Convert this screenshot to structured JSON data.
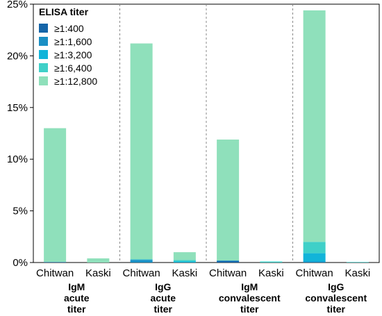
{
  "chart_data": {
    "type": "bar",
    "stacked": true,
    "categories": [
      "Chitwan",
      "Kaski",
      "Chitwan",
      "Kaski",
      "Chitwan",
      "Kaski",
      "Chitwan",
      "Kaski"
    ],
    "groups": [
      {
        "label_lines": [
          "IgM",
          "acute",
          "titer"
        ]
      },
      {
        "label_lines": [
          "IgG",
          "acute",
          "titer"
        ]
      },
      {
        "label_lines": [
          "IgM",
          "convalescent",
          "titer"
        ]
      },
      {
        "label_lines": [
          "IgG",
          "convalescent",
          "titer"
        ]
      }
    ],
    "series": [
      {
        "name": "≥1:400",
        "color": "#1565a8",
        "values": [
          0.05,
          0,
          0,
          0,
          0.15,
          0,
          0,
          0
        ]
      },
      {
        "name": "≥1:1,600",
        "color": "#1a8fc4",
        "values": [
          0,
          0,
          0.25,
          0,
          0.05,
          0,
          0.1,
          0
        ]
      },
      {
        "name": "≥1:3,200",
        "color": "#12b4d9",
        "values": [
          0,
          0,
          0.05,
          0.1,
          0,
          0,
          0.8,
          0
        ]
      },
      {
        "name": "≥1:6,400",
        "color": "#3fd0c8",
        "values": [
          0,
          0,
          0,
          0.15,
          0,
          0.1,
          1.1,
          0.05
        ]
      },
      {
        "name": "≥1:12,800",
        "color": "#8fe0bb",
        "values": [
          12.95,
          0.4,
          20.9,
          0.75,
          11.7,
          0,
          22.4,
          0
        ]
      }
    ],
    "legend": {
      "title": "ELISA titer",
      "position": "top-left"
    },
    "y_ticks": [
      "0%",
      "5%",
      "10%",
      "15%",
      "20%",
      "25%"
    ],
    "ylim": [
      0,
      25
    ],
    "grid": false
  }
}
